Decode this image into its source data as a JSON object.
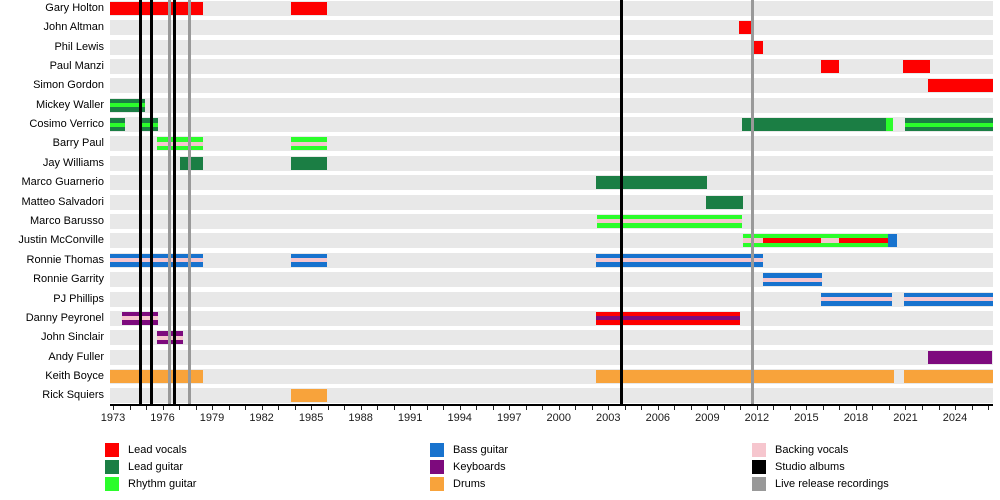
{
  "colors": {
    "lead_vocals": "#FE0000",
    "lead_guitar": "#1B7E44",
    "rhythm_guitar": "#2BFD2B",
    "bass_guitar": "#1873CE",
    "keyboards": "#7D0A7D",
    "drums": "#F8A33B",
    "backing_vocals": "#F6C6CE",
    "studio_albums": "#000000",
    "live_recordings": "#999999",
    "row_band": "#E8E8E8"
  },
  "chart_data": {
    "type": "bar",
    "subtype": "band-membership-timeline-gantt",
    "title": "",
    "xlabel": "",
    "ylabel": "",
    "grid": "horizontal gray row bands",
    "legend_position": "bottom",
    "x_axis": {
      "start_year": 1972.82,
      "end_year": 2026.3,
      "tick_step_years": 1,
      "label_step_years": 3,
      "tick_labels": [
        "1973",
        "1976",
        "1979",
        "1982",
        "1985",
        "1988",
        "1991",
        "1994",
        "1997",
        "2000",
        "2003",
        "2006",
        "2009",
        "2012",
        "2015",
        "2018",
        "2021",
        "2024"
      ]
    },
    "event_lines": {
      "studio_albums": [
        1974.64,
        1975.36,
        1976.7,
        2003.77
      ],
      "live_recordings": [
        1976.45,
        1977.66,
        2011.76
      ]
    },
    "members": [
      {
        "name": "Gary Holton",
        "bars": [
          {
            "from": 1972.82,
            "to": 1978.45,
            "base": "lead_vocals"
          },
          {
            "from": 1983.78,
            "to": 1985.96,
            "base": "lead_vocals"
          }
        ]
      },
      {
        "name": "John Altman",
        "bars": [
          {
            "from": 2010.92,
            "to": 2011.64,
            "base": "lead_vocals"
          }
        ]
      },
      {
        "name": "Phil Lewis",
        "bars": [
          {
            "from": 2011.64,
            "to": 2012.37,
            "base": "lead_vocals"
          }
        ]
      },
      {
        "name": "Paul Manzi",
        "bars": [
          {
            "from": 2015.88,
            "to": 2016.97,
            "base": "lead_vocals"
          },
          {
            "from": 2020.85,
            "to": 2022.49,
            "base": "lead_vocals"
          }
        ]
      },
      {
        "name": "Simon Gordon",
        "bars": [
          {
            "from": 2022.37,
            "to": 2026.3,
            "base": "lead_vocals"
          }
        ]
      },
      {
        "name": "Mickey Waller",
        "bars": [
          {
            "from": 1972.82,
            "to": 1974.94,
            "base": "lead_guitar",
            "stripe": "rhythm_guitar"
          }
        ]
      },
      {
        "name": "Cosimo Verrico",
        "bars": [
          {
            "from": 1972.82,
            "to": 1973.73,
            "base": "lead_guitar",
            "stripe": "rhythm_guitar"
          },
          {
            "from": 1974.64,
            "to": 1975.73,
            "base": "lead_guitar",
            "stripe": "rhythm_guitar"
          },
          {
            "from": 2011.1,
            "to": 2019.8,
            "base": "lead_guitar"
          },
          {
            "from": 2019.8,
            "to": 2020.24,
            "base": "rhythm_guitar"
          },
          {
            "from": 2020.97,
            "to": 2026.3,
            "base": "lead_guitar",
            "stripe": "rhythm_guitar"
          }
        ]
      },
      {
        "name": "Barry Paul",
        "bars": [
          {
            "from": 1975.66,
            "to": 1978.45,
            "base": "rhythm_guitar",
            "stripe": "backing_vocals"
          },
          {
            "from": 1983.78,
            "to": 1985.96,
            "base": "rhythm_guitar",
            "stripe": "backing_vocals"
          }
        ]
      },
      {
        "name": "Jay Williams",
        "bars": [
          {
            "from": 1977.06,
            "to": 1978.45,
            "base": "lead_guitar"
          },
          {
            "from": 1983.78,
            "to": 1985.96,
            "base": "lead_guitar"
          }
        ]
      },
      {
        "name": "Marco Guarnerio",
        "bars": [
          {
            "from": 2002.26,
            "to": 2008.98,
            "base": "lead_guitar"
          }
        ]
      },
      {
        "name": "Matteo Salvadori",
        "bars": [
          {
            "from": 2008.92,
            "to": 2011.16,
            "base": "lead_guitar"
          }
        ]
      },
      {
        "name": "Marco Barusso",
        "bars": [
          {
            "from": 2002.32,
            "to": 2011.1,
            "base": "rhythm_guitar",
            "stripe": "backing_vocals"
          }
        ]
      },
      {
        "name": "Justin McConville",
        "bars": [
          {
            "from": 2011.16,
            "to": 2019.94,
            "base": "rhythm_guitar",
            "mid": [
              {
                "from": 2011.16,
                "to": 2012.37,
                "role": "backing_vocals"
              },
              {
                "from": 2012.37,
                "to": 2015.88,
                "role": "lead_vocals"
              },
              {
                "from": 2015.88,
                "to": 2016.97,
                "role": "backing_vocals"
              },
              {
                "from": 2016.97,
                "to": 2019.94,
                "role": "lead_vocals"
              }
            ]
          },
          {
            "from": 2019.94,
            "to": 2020.48,
            "base": "bass_guitar"
          }
        ]
      },
      {
        "name": "Ronnie Thomas",
        "bars": [
          {
            "from": 1972.82,
            "to": 1978.45,
            "base": "bass_guitar",
            "stripe": "backing_vocals"
          },
          {
            "from": 1983.78,
            "to": 1985.96,
            "base": "bass_guitar",
            "stripe": "backing_vocals"
          },
          {
            "from": 2002.26,
            "to": 2012.37,
            "base": "bass_guitar",
            "stripe": "backing_vocals"
          }
        ]
      },
      {
        "name": "Ronnie Garrity",
        "bars": [
          {
            "from": 2012.37,
            "to": 2015.94,
            "base": "bass_guitar",
            "stripe": "backing_vocals"
          }
        ]
      },
      {
        "name": "PJ Phillips",
        "bars": [
          {
            "from": 2015.88,
            "to": 2020.18,
            "base": "bass_guitar",
            "stripe": "backing_vocals"
          },
          {
            "from": 2020.91,
            "to": 2026.3,
            "base": "bass_guitar",
            "stripe": "backing_vocals"
          }
        ]
      },
      {
        "name": "Danny Peyronel",
        "bars": [
          {
            "from": 1973.55,
            "to": 1975.73,
            "base": "keyboards",
            "stripe": "backing_vocals"
          },
          {
            "from": 2002.26,
            "to": 2010.98,
            "base": "lead_vocals",
            "stripe": "keyboards"
          }
        ]
      },
      {
        "name": "John Sinclair",
        "bars": [
          {
            "from": 1975.66,
            "to": 1977.24,
            "base": "keyboards",
            "stripe": "backing_vocals"
          }
        ]
      },
      {
        "name": "Andy Fuller",
        "bars": [
          {
            "from": 2022.37,
            "to": 2026.24,
            "base": "keyboards"
          }
        ]
      },
      {
        "name": "Keith Boyce",
        "bars": [
          {
            "from": 1972.82,
            "to": 1978.45,
            "base": "drums"
          },
          {
            "from": 2002.26,
            "to": 2020.3,
            "base": "drums"
          },
          {
            "from": 2020.91,
            "to": 2026.3,
            "base": "drums"
          }
        ]
      },
      {
        "name": "Rick Squiers",
        "bars": [
          {
            "from": 1983.78,
            "to": 1985.96,
            "base": "drums"
          }
        ]
      }
    ],
    "legend_columns": [
      [
        {
          "role": "lead_vocals",
          "label": "Lead vocals"
        },
        {
          "role": "lead_guitar",
          "label": "Lead guitar"
        },
        {
          "role": "rhythm_guitar",
          "label": "Rhythm guitar"
        }
      ],
      [
        {
          "role": "bass_guitar",
          "label": "Bass guitar"
        },
        {
          "role": "keyboards",
          "label": "Keyboards"
        },
        {
          "role": "drums",
          "label": "Drums"
        }
      ],
      [
        {
          "role": "backing_vocals",
          "label": "Backing vocals"
        },
        {
          "role": "studio_albums",
          "label": "Studio albums"
        },
        {
          "role": "live_recordings",
          "label": "Live release recordings"
        }
      ]
    ]
  }
}
